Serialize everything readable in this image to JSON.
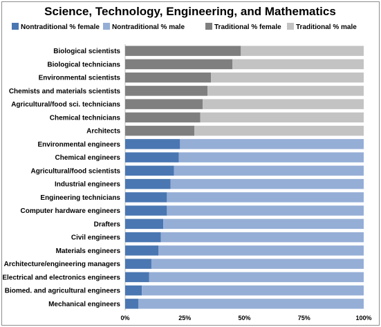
{
  "chart_data": {
    "type": "bar",
    "orientation": "horizontal",
    "stacked": "percent",
    "title": "Science, Technology, Engineering, and Mathematics",
    "xlim": [
      0,
      100
    ],
    "x_ticks": [
      "0%",
      "25%",
      "50%",
      "75%",
      "100%"
    ],
    "legend_position": "top",
    "legend": [
      {
        "label": "Nontraditional  % female",
        "color": "#4a77b2"
      },
      {
        "label": "Nontraditional  % male",
        "color": "#95aed6"
      },
      {
        "label": "Traditional  % female",
        "color": "#7f7f7f"
      },
      {
        "label": "Traditional  % male",
        "color": "#c3c3c3"
      }
    ],
    "categories": [
      "Biological scientists",
      "Biological technicians",
      "Environmental scientists",
      "Chemists and materials scientists",
      "Agricultural/food sci. technicians",
      "Chemical technicians",
      "Architects",
      "Environmental engineers",
      "Chemical engineers",
      "Agricultural/food scientists",
      "Industrial engineers",
      "Engineering technicians",
      "Computer hardware engineers",
      "Drafters",
      "Civil engineers",
      "Materials engineers",
      "Architecture/engineering managers",
      "Electrical and electronics engineers",
      "Biomed. and agricultural engineers",
      "Mechanical engineers"
    ],
    "group": [
      "Traditional",
      "Traditional",
      "Traditional",
      "Traditional",
      "Traditional",
      "Traditional",
      "Traditional",
      "Nontraditional",
      "Nontraditional",
      "Nontraditional",
      "Nontraditional",
      "Nontraditional",
      "Nontraditional",
      "Nontraditional",
      "Nontraditional",
      "Nontraditional",
      "Nontraditional",
      "Nontraditional",
      "Nontraditional",
      "Nontraditional"
    ],
    "female_percent": [
      48.5,
      45,
      36,
      34.5,
      32.5,
      31.5,
      29,
      23,
      22.5,
      20.5,
      19,
      17.5,
      17.5,
      16,
      15,
      14,
      11,
      10,
      7,
      5.5
    ],
    "male_percent": [
      51.5,
      55,
      64,
      65.5,
      67.5,
      68.5,
      71,
      77,
      77.5,
      79.5,
      81,
      82.5,
      82.5,
      84,
      85,
      86,
      89,
      90,
      93,
      94.5
    ]
  }
}
